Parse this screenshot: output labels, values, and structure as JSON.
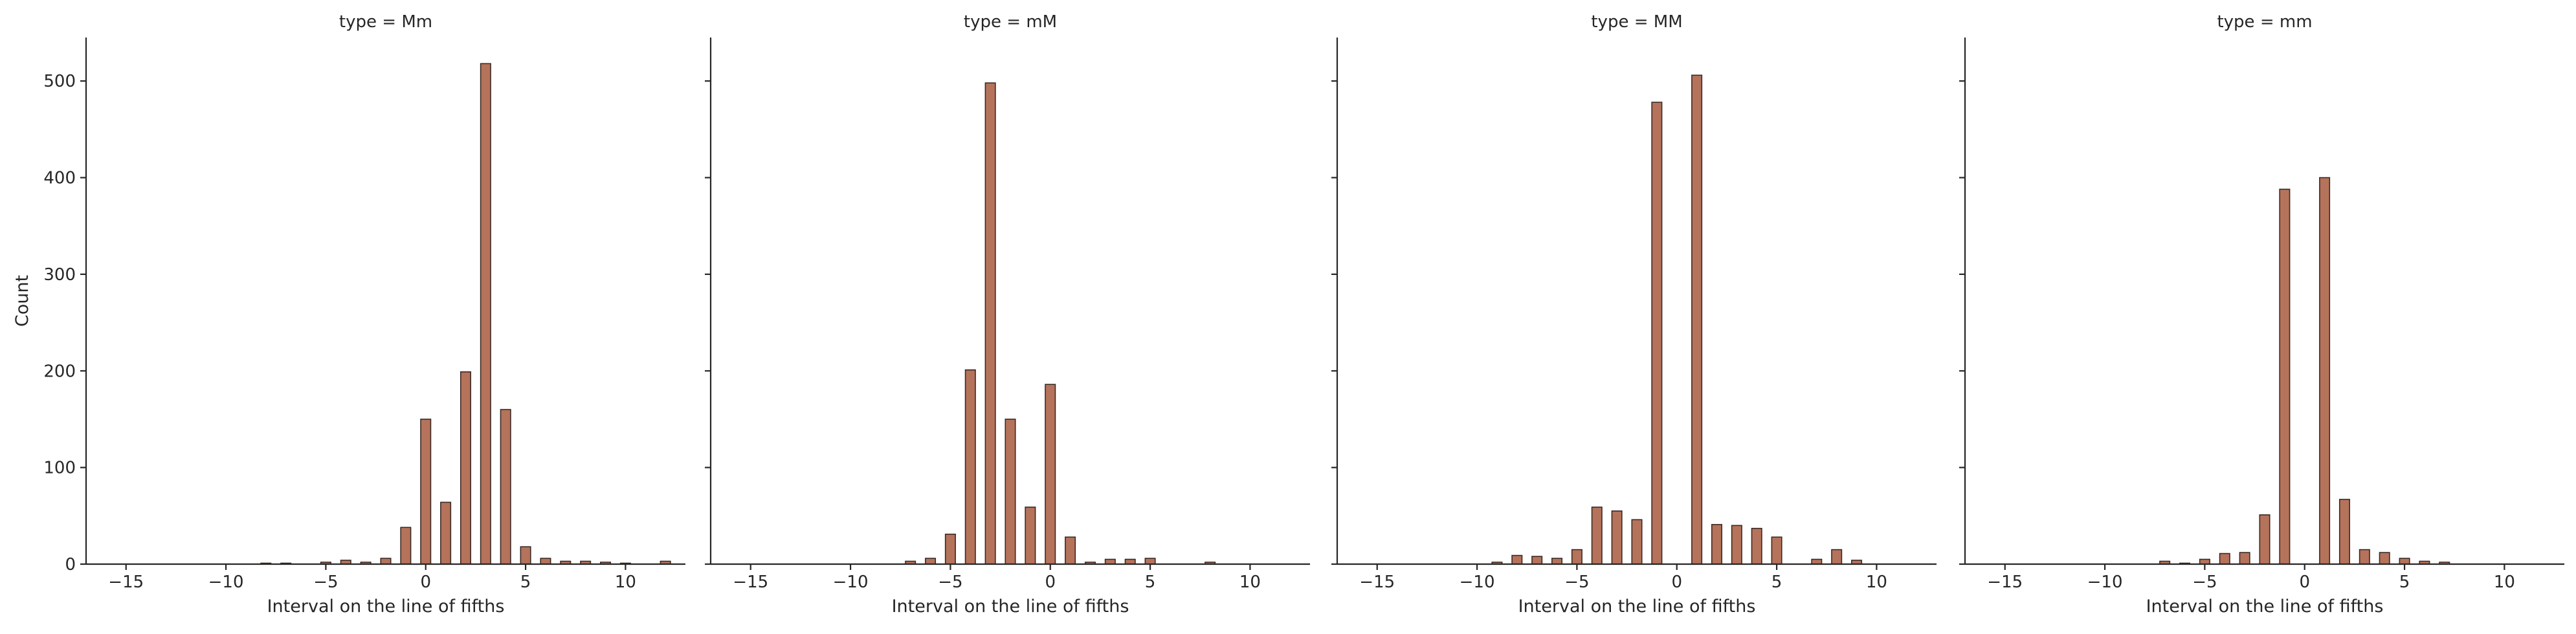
{
  "chart_data": [
    {
      "type": "bar",
      "title": "type = Mm",
      "xlabel": "Interval on the line of fifths",
      "ylabel": "Count",
      "xlim": [
        -17,
        13
      ],
      "ylim": [
        0,
        545
      ],
      "xticks": [
        -15,
        -10,
        -5,
        0,
        5,
        10
      ],
      "yticks": [
        0,
        100,
        200,
        300,
        400,
        500
      ],
      "x": [
        -8,
        -7,
        -5,
        -4,
        -3,
        -2,
        -1,
        0,
        1,
        2,
        3,
        4,
        5,
        6,
        7,
        8,
        9,
        10,
        12
      ],
      "values": [
        1,
        1,
        2,
        4,
        2,
        6,
        38,
        150,
        64,
        199,
        518,
        160,
        18,
        6,
        3,
        3,
        2,
        1,
        3
      ]
    },
    {
      "type": "bar",
      "title": "type = mM",
      "xlabel": "Interval on the line of fifths",
      "ylabel": "",
      "xlim": [
        -17,
        13
      ],
      "ylim": [
        0,
        545
      ],
      "xticks": [
        -15,
        -10,
        -5,
        0,
        5,
        10
      ],
      "yticks": [
        0,
        100,
        200,
        300,
        400,
        500
      ],
      "x": [
        -7,
        -6,
        -5,
        -4,
        -3,
        -2,
        -1,
        0,
        1,
        2,
        3,
        4,
        5,
        8
      ],
      "values": [
        3,
        6,
        31,
        201,
        498,
        150,
        59,
        186,
        28,
        2,
        5,
        5,
        6,
        2
      ]
    },
    {
      "type": "bar",
      "title": "type = MM",
      "xlabel": "Interval on the line of fifths",
      "ylabel": "",
      "xlim": [
        -17,
        13
      ],
      "ylim": [
        0,
        545
      ],
      "xticks": [
        -15,
        -10,
        -5,
        0,
        5,
        10
      ],
      "yticks": [
        0,
        100,
        200,
        300,
        400,
        500
      ],
      "x": [
        -9,
        -8,
        -7,
        -6,
        -5,
        -4,
        -3,
        -2,
        -1,
        1,
        2,
        3,
        4,
        5,
        7,
        8,
        9
      ],
      "values": [
        2,
        9,
        8,
        6,
        15,
        59,
        55,
        46,
        478,
        506,
        41,
        40,
        37,
        28,
        5,
        15,
        4
      ]
    },
    {
      "type": "bar",
      "title": "type = mm",
      "xlabel": "Interval on the line of fifths",
      "ylabel": "",
      "xlim": [
        -17,
        13
      ],
      "ylim": [
        0,
        545
      ],
      "xticks": [
        -15,
        -10,
        -5,
        0,
        5,
        10
      ],
      "yticks": [
        0,
        100,
        200,
        300,
        400,
        500
      ],
      "x": [
        -7,
        -6,
        -5,
        -4,
        -3,
        -2,
        -1,
        1,
        2,
        3,
        4,
        5,
        6,
        7
      ],
      "values": [
        3,
        1,
        5,
        11,
        12,
        51,
        388,
        400,
        67,
        15,
        12,
        6,
        3,
        2
      ]
    }
  ],
  "colors": {
    "bar_fill": "#b5735b",
    "bar_edge": "#3b2a25",
    "axis": "#262626"
  }
}
